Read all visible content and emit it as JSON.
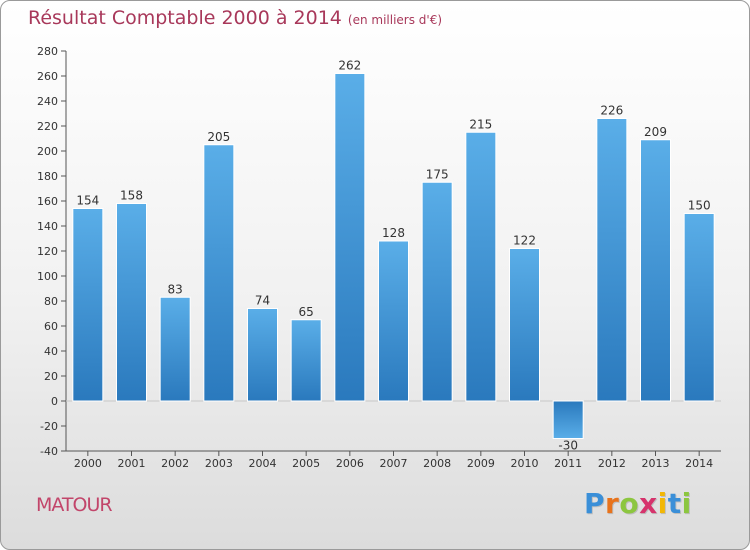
{
  "header": {
    "title": "Résultat Comptable 2000 à 2014",
    "subtitle": "(en milliers d'€)"
  },
  "footer": {
    "place": "MATOUR",
    "logo_letters": [
      "P",
      "r",
      "o",
      "x",
      "i",
      "t",
      "i"
    ],
    "logo_colors": [
      "#3a8fd8",
      "#e8731c",
      "#8cc63f",
      "#d6336c",
      "#f2b705",
      "#3a8fd8",
      "#8cc63f"
    ]
  },
  "chart_data": {
    "type": "bar",
    "categories": [
      "2000",
      "2001",
      "2002",
      "2003",
      "2004",
      "2005",
      "2006",
      "2007",
      "2008",
      "2009",
      "2010",
      "2011",
      "2012",
      "2013",
      "2014"
    ],
    "values": [
      154,
      158,
      83,
      205,
      74,
      65,
      262,
      128,
      175,
      215,
      122,
      -30,
      226,
      209,
      150
    ],
    "title": "Résultat Comptable 2000 à 2014",
    "xlabel": "",
    "ylabel": "",
    "ylim": [
      -40,
      280
    ],
    "ytick_step": 20,
    "grid": false,
    "bar_color": "#4a9fe0",
    "bar_color_dark": "#2b78bf"
  }
}
